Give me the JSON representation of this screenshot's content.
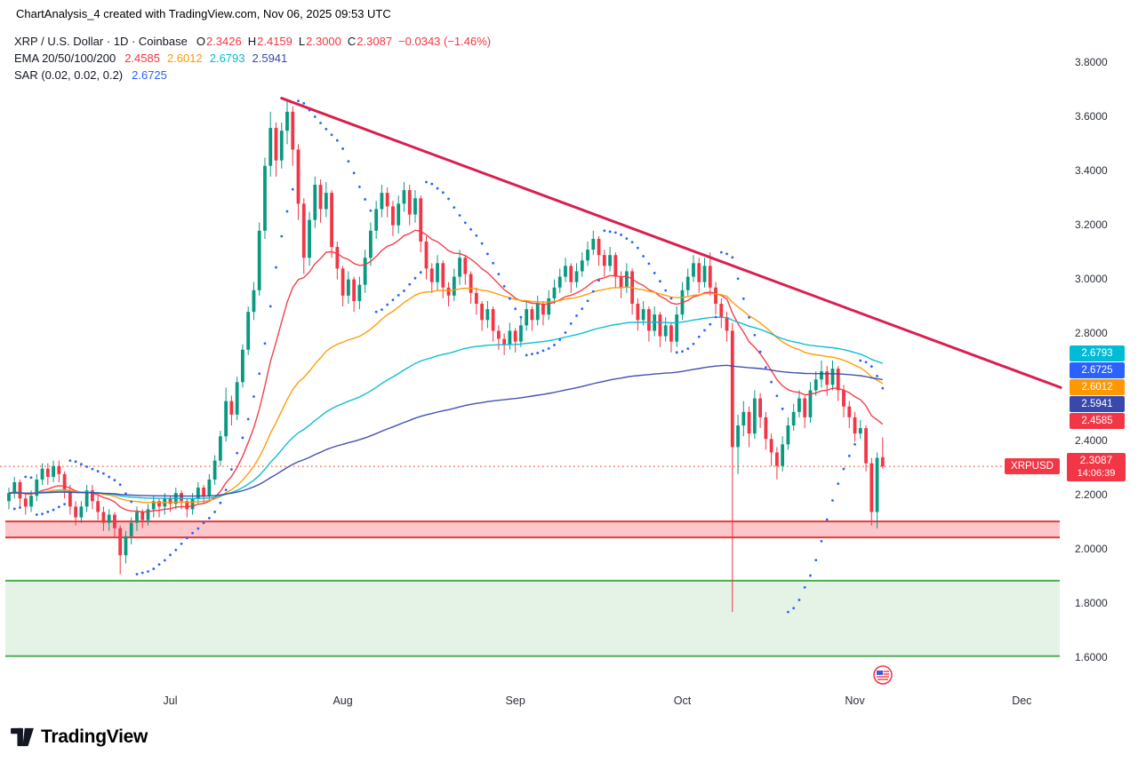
{
  "header": {
    "title": "ChartAnalysis_4 created with TradingView.com, Nov 06, 2025 09:53 UTC"
  },
  "legend": {
    "symbol_row": {
      "title": "XRP / U.S. Dollar · 1D · Coinbase",
      "o_label": "O",
      "o": "2.3426",
      "h_label": "H",
      "h": "2.4159",
      "l_label": "L",
      "l": "2.3000",
      "c_label": "C",
      "c": "2.3087",
      "change": "−0.0343 (−1.46%)",
      "change_color": "#f23645"
    },
    "ema_row": {
      "title": "EMA 20/50/100/200",
      "values": [
        "2.4585",
        "2.6012",
        "2.6793",
        "2.5941"
      ]
    },
    "sar_row": {
      "title": "SAR (0.02, 0.02, 0.2)",
      "value": "2.6725"
    }
  },
  "price_scale": {
    "ticks": [
      3.8,
      3.6,
      3.4,
      3.2,
      3.0,
      2.8,
      2.6,
      2.4,
      2.2,
      2.0,
      1.8,
      1.6
    ],
    "tags": [
      {
        "label": "2.6793",
        "value": 2.6793,
        "color": "#00bcd4"
      },
      {
        "label": "2.6725",
        "value": 2.6725,
        "color": "#2962ff"
      },
      {
        "label": "2.6012",
        "value": 2.6012,
        "color": "#ff9800"
      },
      {
        "label": "2.5941",
        "value": 2.5941,
        "color": "#3949ab"
      },
      {
        "label": "2.4585",
        "value": 2.4585,
        "color": "#f23645"
      }
    ],
    "symbol_tag": {
      "name": "XRPUSD",
      "price": "2.3087",
      "countdown": "14:06:39",
      "color": "#f23645",
      "value": 2.3087
    }
  },
  "time_scale": {
    "labels": [
      {
        "text": "Jul",
        "index": 29
      },
      {
        "text": "Aug",
        "index": 60
      },
      {
        "text": "Sep",
        "index": 91
      },
      {
        "text": "Oct",
        "index": 121
      },
      {
        "text": "Nov",
        "index": 152
      },
      {
        "text": "Dec",
        "index": 182
      }
    ]
  },
  "watermark": {
    "brand": "TradingView"
  },
  "chart_data": {
    "type": "candlestick",
    "symbol": "XRP/USD",
    "exchange": "Coinbase",
    "interval": "1D",
    "start_date": "2025-06-02",
    "end_date": "2025-11-06",
    "ylim": [
      1.55,
      3.85
    ],
    "grid": false,
    "style": {
      "up_color": "#089981",
      "down_color": "#f23645"
    },
    "last": {
      "open": 2.3426,
      "high": 2.4159,
      "low": 2.3,
      "close": 2.3087,
      "change": -0.0343,
      "change_pct": -1.46
    },
    "indicators": {
      "emas": [
        {
          "period": 20,
          "color": "#f23645",
          "current": 2.4585
        },
        {
          "period": 50,
          "color": "#ff9800",
          "current": 2.6012
        },
        {
          "period": 100,
          "color": "#00bcd4",
          "current": 2.6793
        },
        {
          "period": 200,
          "color": "#3949ab",
          "current": 2.5941
        }
      ],
      "sar": {
        "start": 0.02,
        "step": 0.02,
        "max": 0.2,
        "color": "#2962ff",
        "current": 2.6725
      }
    },
    "annotations": {
      "trendline": {
        "x1_index": 49,
        "price1": 3.67,
        "x2_index": 189,
        "price2": 2.6,
        "color": "#d91f4f",
        "width": 3
      },
      "price_line": {
        "value": 2.3087,
        "color": "#ff6d4d"
      },
      "zones": [
        {
          "name": "support-flip-zone",
          "top": 2.105,
          "bottom": 2.046,
          "fill": "rgba(242,54,69,0.28)",
          "border": "#e53935"
        },
        {
          "name": "demand-zone",
          "top": 1.886,
          "bottom": 1.607,
          "fill": "rgba(76,175,80,0.15)",
          "border": "#4caf50"
        }
      ],
      "event_marker": {
        "index": 157
      }
    },
    "candles": [
      [
        2.18,
        2.23,
        2.15,
        2.21
      ],
      [
        2.21,
        2.27,
        2.19,
        2.25
      ],
      [
        2.25,
        2.26,
        2.16,
        2.19
      ],
      [
        2.19,
        2.21,
        2.13,
        2.16
      ],
      [
        2.16,
        2.22,
        2.14,
        2.2
      ],
      [
        2.2,
        2.28,
        2.18,
        2.26
      ],
      [
        2.26,
        2.32,
        2.24,
        2.3
      ],
      [
        2.3,
        2.32,
        2.24,
        2.27
      ],
      [
        2.27,
        2.33,
        2.25,
        2.31
      ],
      [
        2.31,
        2.33,
        2.25,
        2.28
      ],
      [
        2.28,
        2.29,
        2.19,
        2.22
      ],
      [
        2.22,
        2.24,
        2.13,
        2.16
      ],
      [
        2.16,
        2.18,
        2.09,
        2.12
      ],
      [
        2.12,
        2.18,
        2.1,
        2.16
      ],
      [
        2.16,
        2.24,
        2.14,
        2.22
      ],
      [
        2.22,
        2.24,
        2.15,
        2.18
      ],
      [
        2.18,
        2.2,
        2.11,
        2.14
      ],
      [
        2.14,
        2.16,
        2.07,
        2.1
      ],
      [
        2.1,
        2.15,
        2.07,
        2.13
      ],
      [
        2.13,
        2.14,
        2.05,
        2.08
      ],
      [
        2.08,
        2.09,
        1.91,
        1.98
      ],
      [
        1.98,
        2.07,
        1.95,
        2.05
      ],
      [
        2.05,
        2.12,
        2.02,
        2.1
      ],
      [
        2.1,
        2.16,
        2.07,
        2.14
      ],
      [
        2.14,
        2.15,
        2.08,
        2.11
      ],
      [
        2.11,
        2.17,
        2.09,
        2.15
      ],
      [
        2.15,
        2.2,
        2.12,
        2.18
      ],
      [
        2.18,
        2.19,
        2.12,
        2.16
      ],
      [
        2.16,
        2.21,
        2.13,
        2.19
      ],
      [
        2.19,
        2.2,
        2.14,
        2.17
      ],
      [
        2.17,
        2.23,
        2.15,
        2.21
      ],
      [
        2.21,
        2.22,
        2.15,
        2.18
      ],
      [
        2.18,
        2.19,
        2.12,
        2.15
      ],
      [
        2.15,
        2.21,
        2.13,
        2.19
      ],
      [
        2.19,
        2.25,
        2.17,
        2.23
      ],
      [
        2.23,
        2.24,
        2.17,
        2.2
      ],
      [
        2.2,
        2.28,
        2.18,
        2.26
      ],
      [
        2.26,
        2.35,
        2.24,
        2.33
      ],
      [
        2.33,
        2.44,
        2.31,
        2.42
      ],
      [
        2.42,
        2.6,
        2.4,
        2.55
      ],
      [
        2.55,
        2.57,
        2.46,
        2.5
      ],
      [
        2.5,
        2.64,
        2.48,
        2.62
      ],
      [
        2.62,
        2.76,
        2.6,
        2.74
      ],
      [
        2.74,
        2.9,
        2.72,
        2.88
      ],
      [
        2.88,
        2.99,
        2.85,
        2.96
      ],
      [
        2.96,
        3.21,
        2.94,
        3.18
      ],
      [
        3.18,
        3.45,
        3.15,
        3.42
      ],
      [
        3.42,
        3.62,
        3.38,
        3.56
      ],
      [
        3.56,
        3.58,
        3.38,
        3.44
      ],
      [
        3.44,
        3.58,
        3.41,
        3.55
      ],
      [
        3.55,
        3.66,
        3.5,
        3.62
      ],
      [
        3.62,
        3.64,
        3.42,
        3.48
      ],
      [
        3.48,
        3.5,
        3.22,
        3.28
      ],
      [
        3.28,
        3.3,
        3.02,
        3.08
      ],
      [
        3.08,
        3.25,
        3.05,
        3.22
      ],
      [
        3.22,
        3.38,
        3.19,
        3.35
      ],
      [
        3.35,
        3.37,
        3.21,
        3.26
      ],
      [
        3.26,
        3.36,
        3.23,
        3.32
      ],
      [
        3.32,
        3.33,
        3.08,
        3.12
      ],
      [
        3.12,
        3.14,
        3.0,
        3.04
      ],
      [
        3.04,
        3.05,
        2.9,
        2.94
      ],
      [
        2.94,
        3.03,
        2.91,
        3.0
      ],
      [
        3.0,
        3.01,
        2.88,
        2.92
      ],
      [
        2.92,
        3.01,
        2.89,
        2.98
      ],
      [
        2.98,
        3.11,
        2.95,
        3.08
      ],
      [
        3.08,
        3.21,
        3.05,
        3.18
      ],
      [
        3.18,
        3.29,
        3.15,
        3.26
      ],
      [
        3.26,
        3.35,
        3.23,
        3.32
      ],
      [
        3.32,
        3.34,
        3.23,
        3.27
      ],
      [
        3.27,
        3.29,
        3.16,
        3.2
      ],
      [
        3.2,
        3.31,
        3.17,
        3.28
      ],
      [
        3.28,
        3.36,
        3.25,
        3.33
      ],
      [
        3.33,
        3.35,
        3.2,
        3.24
      ],
      [
        3.24,
        3.33,
        3.21,
        3.3
      ],
      [
        3.3,
        3.31,
        3.1,
        3.14
      ],
      [
        3.14,
        3.16,
        3.0,
        3.04
      ],
      [
        3.04,
        3.06,
        2.95,
        2.99
      ],
      [
        2.99,
        3.09,
        2.96,
        3.06
      ],
      [
        3.06,
        3.07,
        2.93,
        2.97
      ],
      [
        2.97,
        2.99,
        2.9,
        2.94
      ],
      [
        2.94,
        3.04,
        2.92,
        3.01
      ],
      [
        3.01,
        3.11,
        2.98,
        3.08
      ],
      [
        3.08,
        3.09,
        2.98,
        3.02
      ],
      [
        3.02,
        3.03,
        2.91,
        2.95
      ],
      [
        2.95,
        2.97,
        2.87,
        2.91
      ],
      [
        2.91,
        2.92,
        2.81,
        2.85
      ],
      [
        2.85,
        2.92,
        2.82,
        2.89
      ],
      [
        2.89,
        2.9,
        2.77,
        2.81
      ],
      [
        2.81,
        2.83,
        2.74,
        2.78
      ],
      [
        2.78,
        2.8,
        2.72,
        2.76
      ],
      [
        2.76,
        2.84,
        2.74,
        2.81
      ],
      [
        2.81,
        2.82,
        2.73,
        2.77
      ],
      [
        2.77,
        2.86,
        2.75,
        2.83
      ],
      [
        2.83,
        2.92,
        2.81,
        2.89
      ],
      [
        2.89,
        2.9,
        2.81,
        2.85
      ],
      [
        2.85,
        2.94,
        2.83,
        2.91
      ],
      [
        2.91,
        2.92,
        2.83,
        2.87
      ],
      [
        2.87,
        2.96,
        2.85,
        2.93
      ],
      [
        2.93,
        3.0,
        2.91,
        2.97
      ],
      [
        2.97,
        3.04,
        2.95,
        3.01
      ],
      [
        3.01,
        3.08,
        2.99,
        3.05
      ],
      [
        3.05,
        3.06,
        2.95,
        2.99
      ],
      [
        2.99,
        3.06,
        2.97,
        3.03
      ],
      [
        3.03,
        3.1,
        3.01,
        3.07
      ],
      [
        3.07,
        3.14,
        3.05,
        3.11
      ],
      [
        3.11,
        3.18,
        3.09,
        3.15
      ],
      [
        3.15,
        3.16,
        3.05,
        3.09
      ],
      [
        3.09,
        3.11,
        3.01,
        3.05
      ],
      [
        3.05,
        3.12,
        3.03,
        3.09
      ],
      [
        3.09,
        3.1,
        2.97,
        3.01
      ],
      [
        3.01,
        3.03,
        2.93,
        2.97
      ],
      [
        2.97,
        3.06,
        2.95,
        3.03
      ],
      [
        3.03,
        3.04,
        2.87,
        2.91
      ],
      [
        2.91,
        2.93,
        2.81,
        2.85
      ],
      [
        2.85,
        2.92,
        2.83,
        2.89
      ],
      [
        2.89,
        2.9,
        2.77,
        2.81
      ],
      [
        2.81,
        2.9,
        2.79,
        2.87
      ],
      [
        2.87,
        2.88,
        2.75,
        2.79
      ],
      [
        2.79,
        2.86,
        2.77,
        2.83
      ],
      [
        2.83,
        2.84,
        2.73,
        2.77
      ],
      [
        2.77,
        2.9,
        2.75,
        2.87
      ],
      [
        2.87,
        2.99,
        2.85,
        2.96
      ],
      [
        2.96,
        3.04,
        2.94,
        3.01
      ],
      [
        3.01,
        3.09,
        2.99,
        3.06
      ],
      [
        3.06,
        3.08,
        2.95,
        2.99
      ],
      [
        2.99,
        3.08,
        2.97,
        3.05
      ],
      [
        3.05,
        3.1,
        2.94,
        2.97
      ],
      [
        2.97,
        2.99,
        2.87,
        2.91
      ],
      [
        2.91,
        2.93,
        2.82,
        2.86
      ],
      [
        2.86,
        2.88,
        2.77,
        2.81
      ],
      [
        2.81,
        2.84,
        1.77,
        2.38
      ],
      [
        2.38,
        2.5,
        2.28,
        2.46
      ],
      [
        2.46,
        2.55,
        2.42,
        2.51
      ],
      [
        2.51,
        2.53,
        2.38,
        2.43
      ],
      [
        2.43,
        2.59,
        2.41,
        2.56
      ],
      [
        2.56,
        2.58,
        2.45,
        2.49
      ],
      [
        2.49,
        2.51,
        2.37,
        2.41
      ],
      [
        2.41,
        2.43,
        2.31,
        2.36
      ],
      [
        2.36,
        2.38,
        2.26,
        2.31
      ],
      [
        2.31,
        2.42,
        2.29,
        2.39
      ],
      [
        2.39,
        2.49,
        2.37,
        2.46
      ],
      [
        2.46,
        2.54,
        2.44,
        2.51
      ],
      [
        2.51,
        2.59,
        2.49,
        2.56
      ],
      [
        2.56,
        2.57,
        2.45,
        2.49
      ],
      [
        2.49,
        2.62,
        2.47,
        2.59
      ],
      [
        2.59,
        2.66,
        2.57,
        2.63
      ],
      [
        2.63,
        2.7,
        2.6,
        2.66
      ],
      [
        2.66,
        2.68,
        2.57,
        2.61
      ],
      [
        2.61,
        2.7,
        2.59,
        2.67
      ],
      [
        2.67,
        2.68,
        2.55,
        2.59
      ],
      [
        2.59,
        2.61,
        2.49,
        2.53
      ],
      [
        2.53,
        2.55,
        2.45,
        2.49
      ],
      [
        2.49,
        2.51,
        2.4,
        2.43
      ],
      [
        2.43,
        2.48,
        2.41,
        2.45
      ],
      [
        2.45,
        2.46,
        2.29,
        2.32
      ],
      [
        2.32,
        2.34,
        2.09,
        2.14
      ],
      [
        2.14,
        2.36,
        2.08,
        2.34
      ],
      [
        2.3426,
        2.4159,
        2.3,
        2.3087
      ]
    ]
  }
}
